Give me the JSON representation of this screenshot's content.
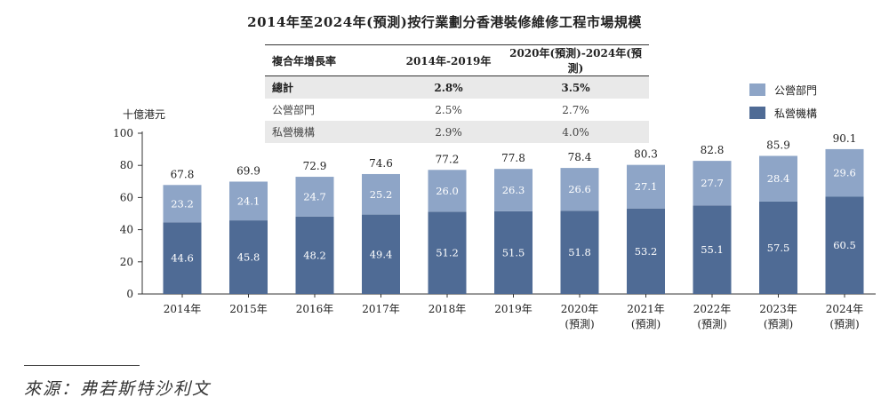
{
  "title": "2014年至2024年(預測)按行業劃分香港裝修維修工程市場規模",
  "growth_table": {
    "headers": [
      "複合年增長率",
      "2014年-2019年",
      "2020年(預測)-2024年(預測)"
    ],
    "rows": [
      {
        "label": "總計",
        "v1": "2.8%",
        "v2": "3.5%"
      },
      {
        "label": "公營部門",
        "v1": "2.5%",
        "v2": "2.7%"
      },
      {
        "label": "私營機構",
        "v1": "2.9%",
        "v2": "4.0%"
      }
    ]
  },
  "legend": [
    {
      "label": "公營部門",
      "color": "#8ea5c7"
    },
    {
      "label": "私營機構",
      "color": "#4f6b95"
    }
  ],
  "source": "來源：弗若斯特沙利文",
  "chart_data": {
    "type": "bar",
    "stacked": true,
    "ylabel": "十億港元",
    "ylim": [
      0,
      100
    ],
    "yticks": [
      0,
      20,
      40,
      60,
      80,
      100
    ],
    "categories": [
      [
        "2014年"
      ],
      [
        "2015年"
      ],
      [
        "2016年"
      ],
      [
        "2017年"
      ],
      [
        "2018年"
      ],
      [
        "2019年"
      ],
      [
        "2020年",
        "(預測)"
      ],
      [
        "2021年",
        "(預測)"
      ],
      [
        "2022年",
        "(預測)"
      ],
      [
        "2023年",
        "(預測)"
      ],
      [
        "2024年",
        "(預測)"
      ]
    ],
    "series": [
      {
        "name": "私營機構",
        "color": "#4f6b95",
        "values": [
          44.6,
          45.8,
          48.2,
          49.4,
          51.2,
          51.5,
          51.8,
          53.2,
          55.1,
          57.5,
          60.5
        ]
      },
      {
        "name": "公營部門",
        "color": "#8ea5c7",
        "values": [
          23.2,
          24.1,
          24.7,
          25.2,
          26.0,
          26.3,
          26.6,
          27.1,
          27.7,
          28.4,
          29.6
        ]
      }
    ],
    "totals": [
      67.8,
      69.9,
      72.9,
      74.6,
      77.2,
      77.8,
      78.4,
      80.3,
      82.8,
      85.9,
      90.1
    ],
    "grid": false,
    "legend_position": "top-right"
  }
}
